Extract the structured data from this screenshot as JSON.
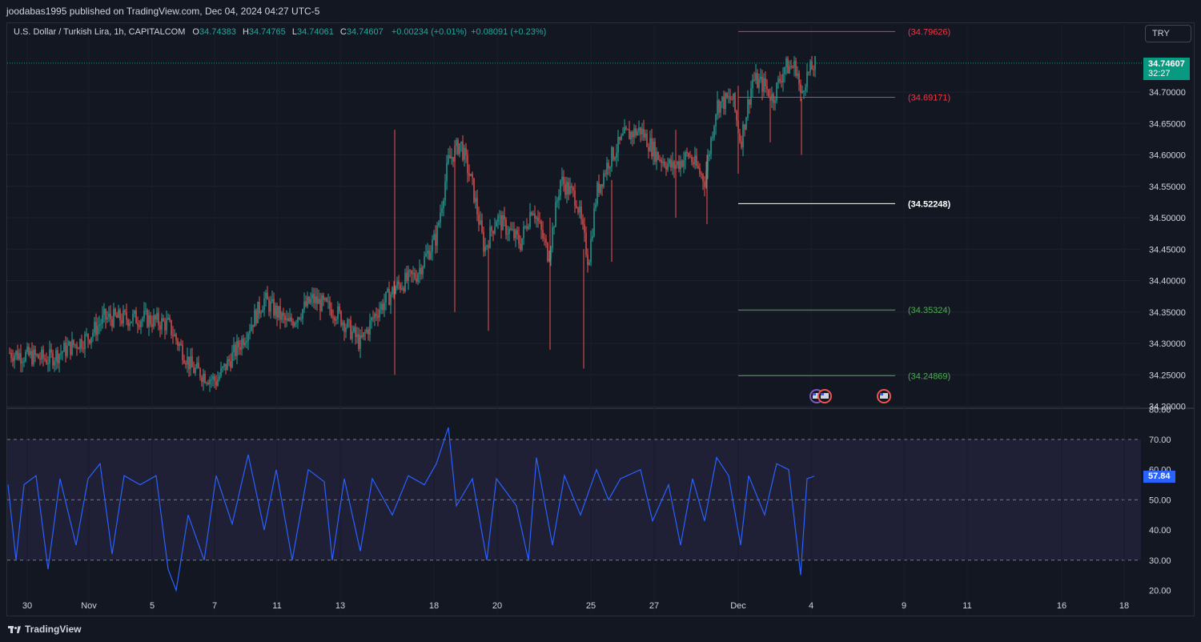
{
  "header": {
    "publisher_line": "joodabas1995 published on TradingView.com, Dec 04, 2024 04:27 UTC-5"
  },
  "legend": {
    "symbol": "U.S. Dollar / Turkish Lira, 1h, CAPITALCOM",
    "o_label": "O",
    "o_value": "34.74383",
    "h_label": "H",
    "h_value": "34.74765",
    "l_label": "L",
    "l_value": "34.74061",
    "c_label": "C",
    "c_value": "34.74607",
    "change": "+0.00234 (+0.01%)",
    "change2": "+0.08091 (+0.23%)"
  },
  "currency_button": "TRY",
  "last_price": {
    "value": "34.74607",
    "countdown": "32:27"
  },
  "rsi_value_label": "57.84",
  "price_axis": [
    "34.70000",
    "34.65000",
    "34.60000",
    "34.55000",
    "34.50000",
    "34.45000",
    "34.40000",
    "34.35000",
    "34.30000",
    "34.25000",
    "34.20000"
  ],
  "rsi_axis": [
    "80.00",
    "70.00",
    "60.00",
    "50.00",
    "40.00",
    "30.00",
    "20.00"
  ],
  "time_axis": [
    "30",
    "Nov",
    "5",
    "7",
    "11",
    "13",
    "18",
    "20",
    "25",
    "27",
    "Dec",
    "4",
    "9",
    "11",
    "16",
    "18"
  ],
  "levels": [
    {
      "label": "(34.79626)",
      "color": "#f23645"
    },
    {
      "label": "(34.69171)",
      "color": "#f23645"
    },
    {
      "label": "(34.52248)",
      "color": "#ffffff"
    },
    {
      "label": "(34.35324)",
      "color": "#4caf50"
    },
    {
      "label": "(34.24869)",
      "color": "#4caf50"
    }
  ],
  "colors": {
    "up": "#26a69a",
    "down": "#ef5350",
    "rsi": "#2962ff",
    "background": "#131722"
  },
  "icons": [
    "us-flag-event-icon",
    "lightning-event-icon"
  ],
  "footer": {
    "logo_text": "TradingView"
  }
}
